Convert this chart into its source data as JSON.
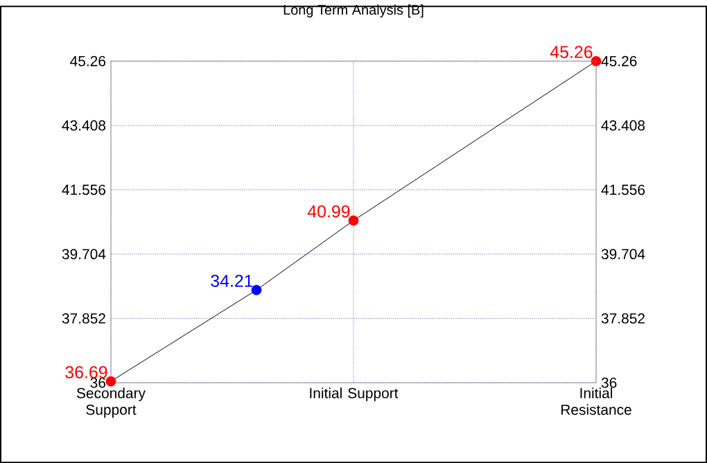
{
  "chart_data": {
    "type": "line",
    "title": "Long Term Analysis [B]",
    "categories": [
      "Secondary Support",
      null,
      null,
      null,
      null,
      null,
      null,
      null,
      null,
      null,
      "Initial Support",
      null,
      null,
      null,
      null,
      null,
      null,
      null,
      null,
      null,
      "Initial Resistance"
    ],
    "ylim": [
      36,
      45.26
    ],
    "yticks": [
      36,
      37.852,
      39.704,
      41.556,
      43.408,
      45.26
    ],
    "y2lim": [
      36,
      45.26
    ],
    "y2ticks": [
      36,
      37.852,
      39.704,
      41.556,
      43.408,
      45.26
    ],
    "grid": true,
    "series": [
      {
        "color": "#000000",
        "marker": "none",
        "values": [
          36.04,
          null,
          null,
          null,
          null,
          null,
          38.67,
          null,
          null,
          null,
          40.67,
          null,
          null,
          null,
          null,
          null,
          null,
          null,
          null,
          null,
          45.26
        ]
      },
      {
        "type": "scatter",
        "color": "#ff0000",
        "marker": "circle",
        "values": [
          36.04,
          null,
          null,
          null,
          null,
          null,
          null,
          null,
          null,
          null,
          40.67,
          null,
          null,
          null,
          null,
          null,
          null,
          null,
          null,
          null,
          45.26
        ]
      },
      {
        "type": "scatter",
        "color": "#0000ff",
        "marker": "circle",
        "values": [
          null,
          null,
          null,
          null,
          null,
          null,
          38.67,
          null,
          null,
          null,
          null,
          null,
          null,
          null,
          null,
          null,
          null,
          null,
          null,
          null,
          null
        ]
      }
    ],
    "annotations": [
      {
        "text": "36.69",
        "x": "Secondary Support",
        "y": 36.04
      },
      "34.21",
      {
        "text": "40.99",
        "x": "Initial Support",
        "y": 40.67
      },
      {
        "text": "45.26",
        "x": "Initial Resistance",
        "y": 45.26
      }
    ]
  }
}
